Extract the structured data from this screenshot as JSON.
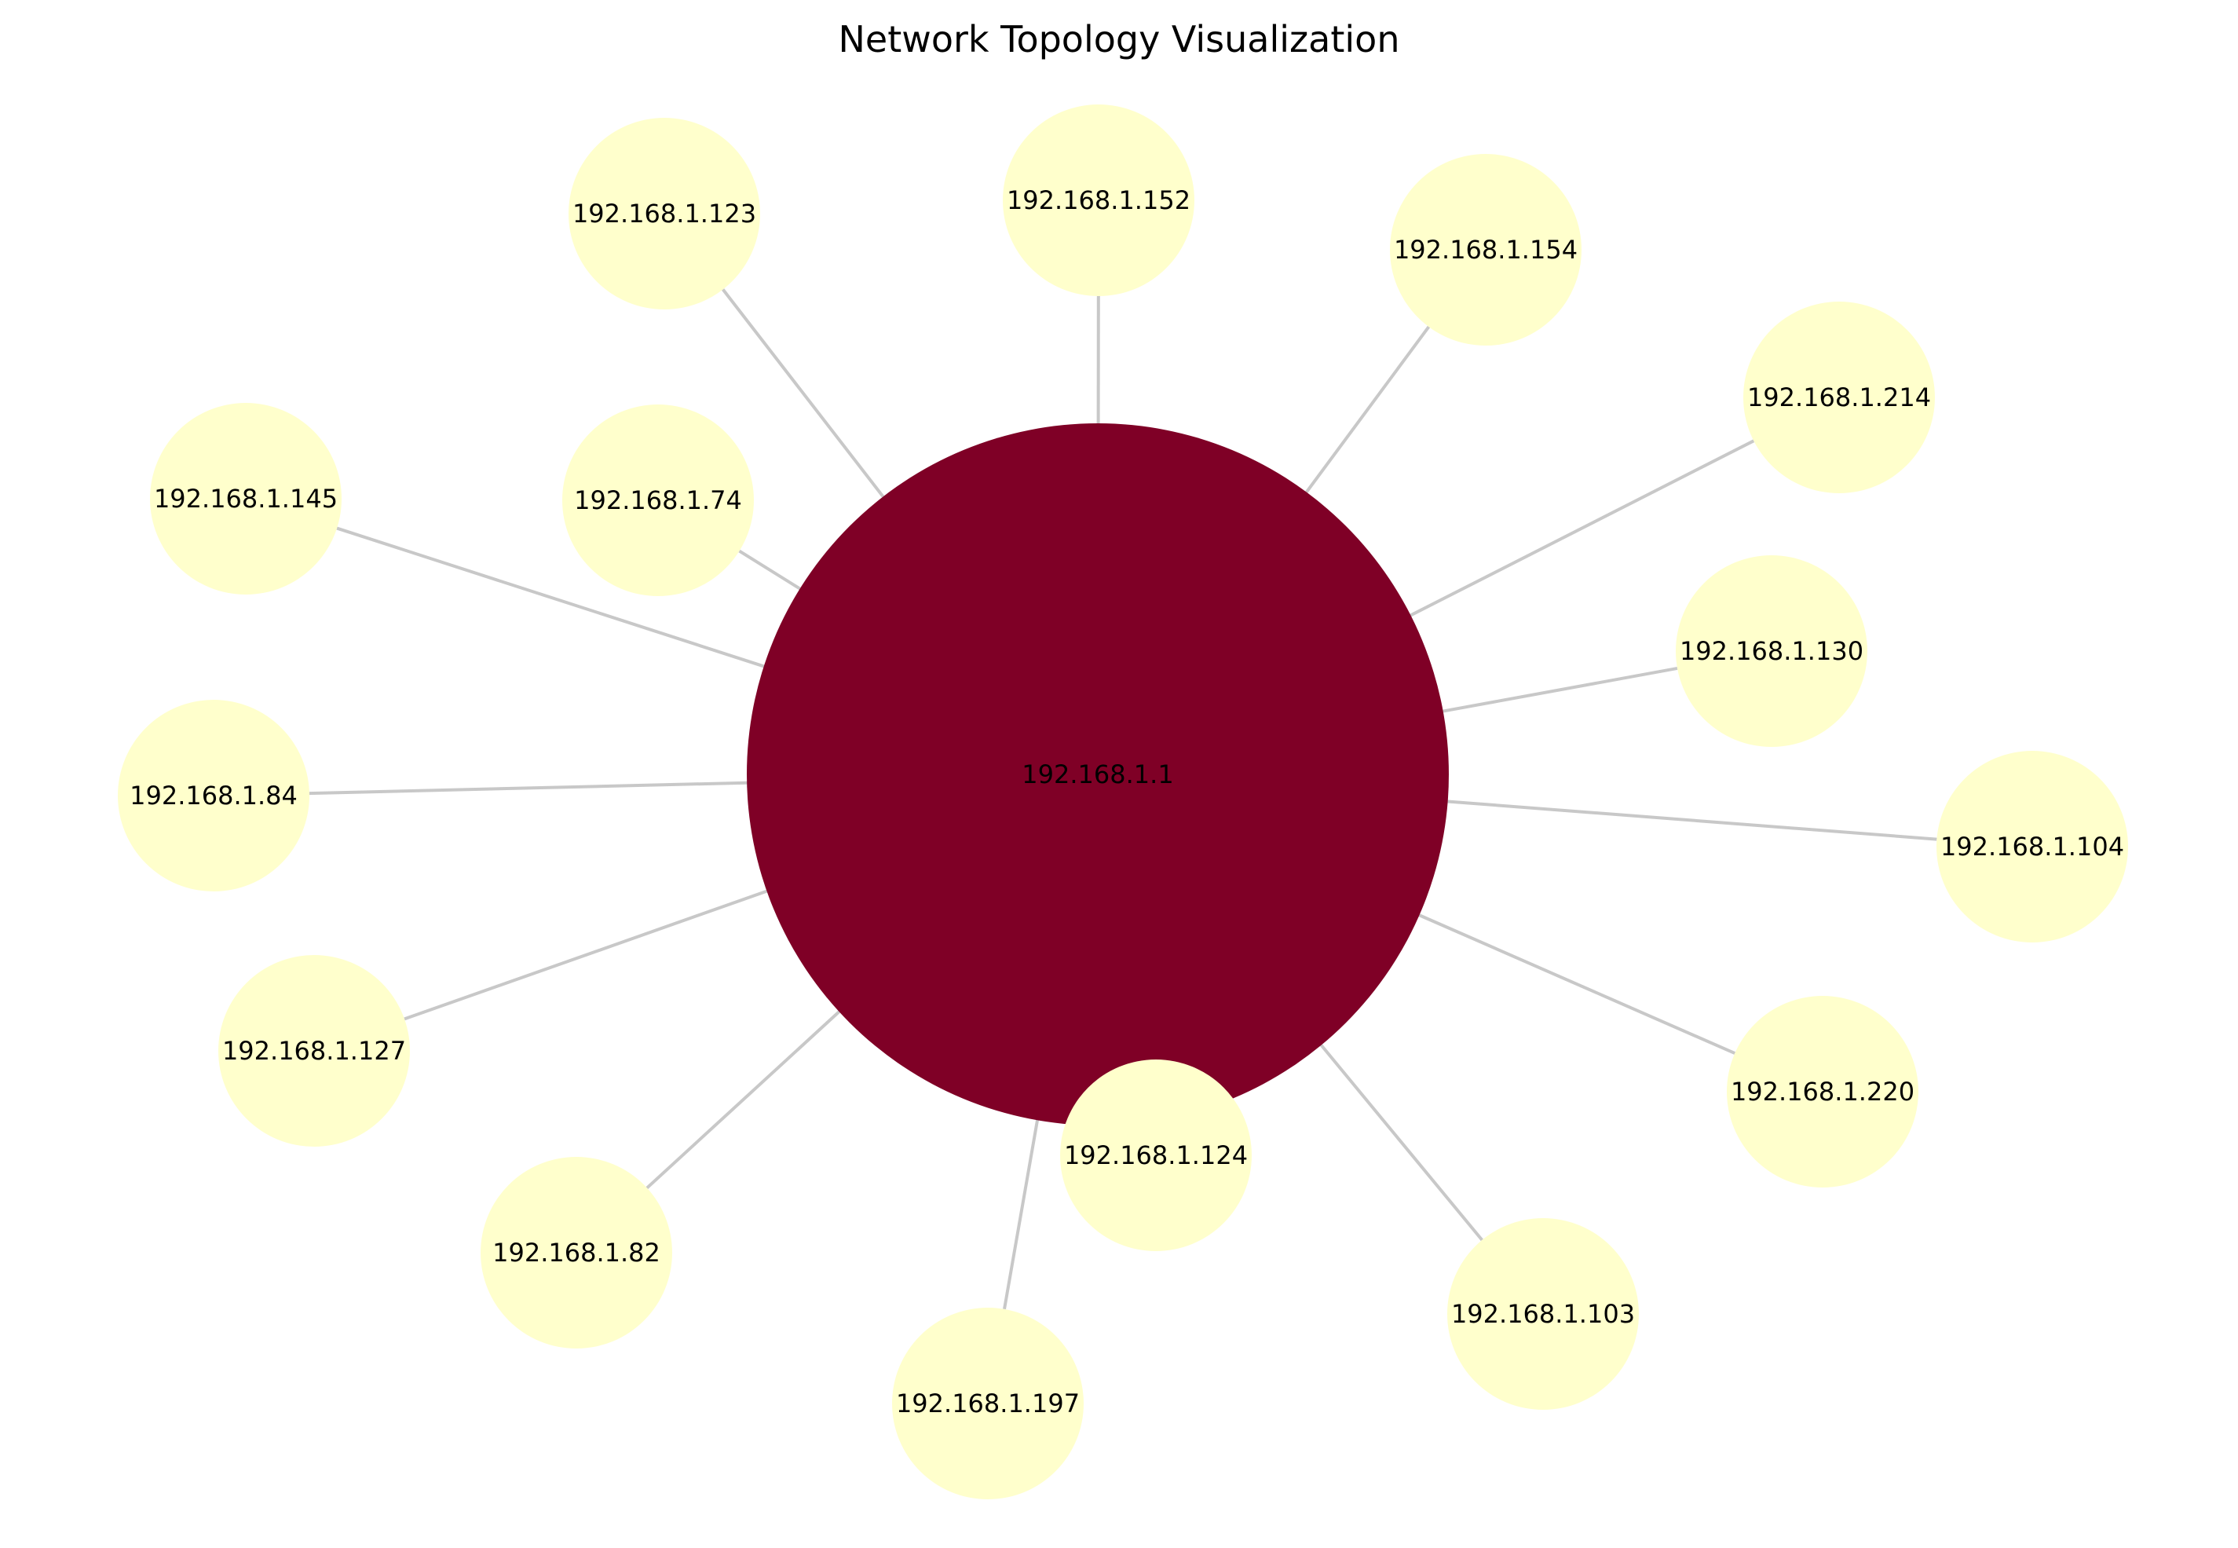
{
  "title": "Network Topology Visualization",
  "colors": {
    "hub_fill": "#7f0026",
    "node_fill": "#ffffcc",
    "edge": "#c8c8c8",
    "text": "#000000"
  },
  "hub": {
    "id": "192.168.1.1"
  },
  "nodes": [
    "192.168.1.123",
    "192.168.1.152",
    "192.168.1.154",
    "192.168.1.214",
    "192.168.1.145",
    "192.168.1.74",
    "192.168.1.130",
    "192.168.1.84",
    "192.168.1.104",
    "192.168.1.127",
    "192.168.1.220",
    "192.168.1.82",
    "192.168.1.124",
    "192.168.1.103",
    "192.168.1.197"
  ]
}
